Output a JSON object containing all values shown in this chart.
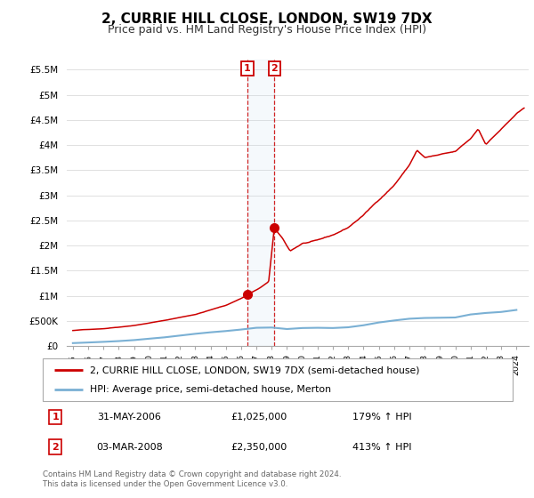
{
  "title": "2, CURRIE HILL CLOSE, LONDON, SW19 7DX",
  "subtitle": "Price paid vs. HM Land Registry's House Price Index (HPI)",
  "ylabel_ticks": [
    "£0",
    "£500K",
    "£1M",
    "£1.5M",
    "£2M",
    "£2.5M",
    "£3M",
    "£3.5M",
    "£4M",
    "£4.5M",
    "£5M",
    "£5.5M"
  ],
  "ylabel_values": [
    0,
    500000,
    1000000,
    1500000,
    2000000,
    2500000,
    3000000,
    3500000,
    4000000,
    4500000,
    5000000,
    5500000
  ],
  "ylim": [
    0,
    5700000
  ],
  "x_start_year": 1995,
  "x_end_year": 2024,
  "marker1_year": 2006.41,
  "marker1_value": 1025000,
  "marker2_year": 2008.17,
  "marker2_value": 2350000,
  "marker1_date": "31-MAY-2006",
  "marker1_price": "£1,025,000",
  "marker1_hpi": "179% ↑ HPI",
  "marker2_date": "03-MAR-2008",
  "marker2_price": "£2,350,000",
  "marker2_hpi": "413% ↑ HPI",
  "legend_line1": "2, CURRIE HILL CLOSE, LONDON, SW19 7DX (semi-detached house)",
  "legend_line2": "HPI: Average price, semi-detached house, Merton",
  "footer": "Contains HM Land Registry data © Crown copyright and database right 2024.\nThis data is licensed under the Open Government Licence v3.0.",
  "property_line_color": "#cc0000",
  "hpi_line_color": "#7ab0d4",
  "background_color": "#ffffff",
  "grid_color": "#e0e0e0"
}
